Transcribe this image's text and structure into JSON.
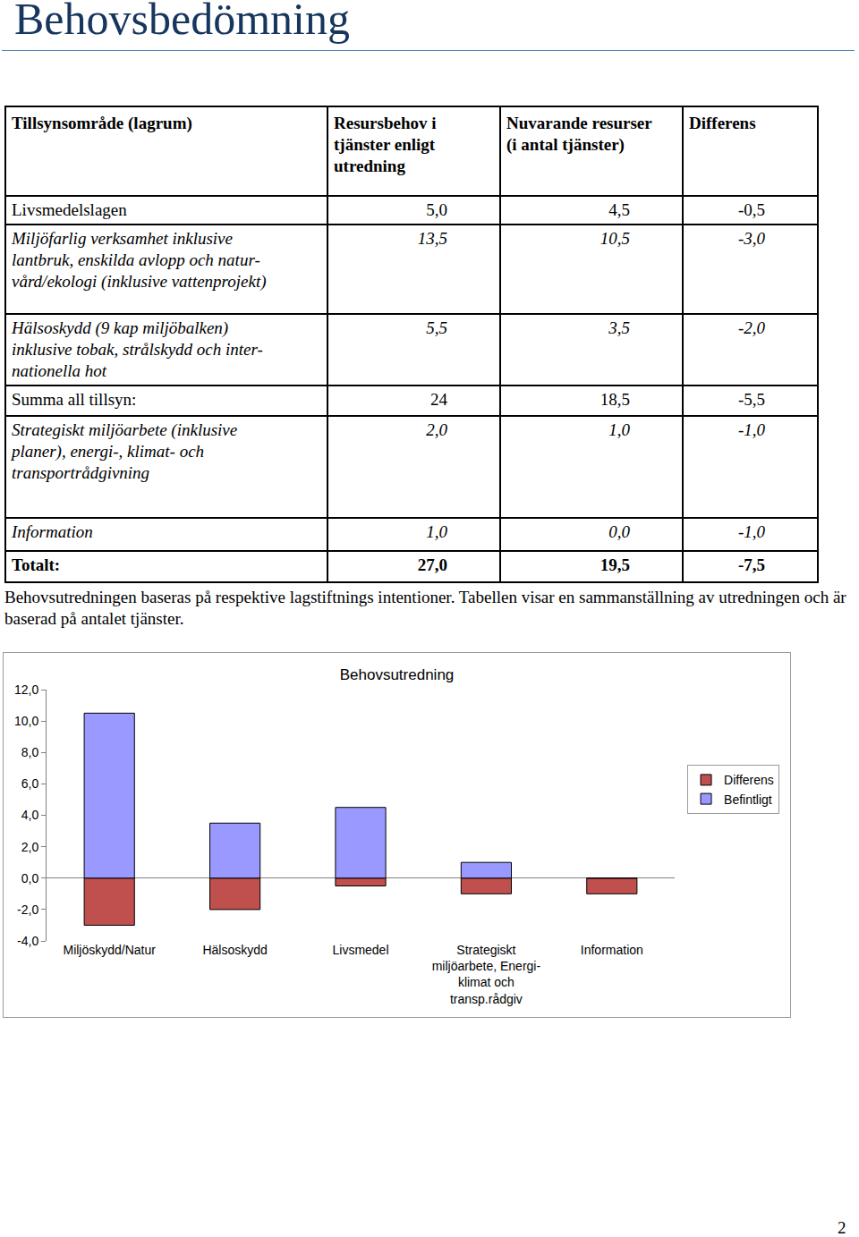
{
  "header": {
    "title": "Behovsbedömning"
  },
  "table": {
    "header": [
      "Tillsynsområde (lagrum)",
      "Resursbehov i\ntjänster enligt\nutredning",
      "Nuvarande resurser\n(i antal tjänster)",
      "Differens"
    ],
    "rows": [
      [
        "Livsmedelslagen",
        "5,0",
        "4,5",
        "-0,5"
      ],
      [
        "Miljöfarlig verksamhet inklusive\nlantbruk, enskilda avlopp och natur-\nvård/ekologi (inklusive vattenprojekt)",
        "13,5",
        "10,5",
        "-3,0"
      ],
      [
        "Hälsoskydd (9 kap miljöbalken)\ninklusive tobak, strålskydd och inter-\nnationella hot",
        "5,5",
        "3,5",
        "-2,0"
      ],
      [
        "Summa all tillsyn:",
        "24",
        "18,5",
        "-5,5"
      ],
      [
        "Strategiskt miljöarbete (inklusive\nplaner), energi-, klimat- och\ntransportrådgivning",
        "2,0",
        "1,0",
        "-1,0"
      ],
      [
        "Information",
        "1,0",
        "0,0",
        "-1,0"
      ],
      [
        "Totalt:",
        "27,0",
        "19,5",
        "-7,5"
      ]
    ]
  },
  "paragraph": "Behovsutredningen baseras på respektive lagstiftnings intentioner. Tabellen visar en sammanställning av utredningen och är baserad på antalet tjänster.",
  "chart_data": {
    "type": "bar",
    "title": "Behovsutredning",
    "stacked": true,
    "categories": [
      "Miljöskydd/Natur",
      "Hälsoskydd",
      "Livsmedel",
      "Strategiskt\nmiljöarbete, Energi-\nklimat och\ntransp.rådgiv",
      "Information"
    ],
    "series": [
      {
        "name": "Differens",
        "color": "#c0504d",
        "values": [
          -3.0,
          -2.0,
          -0.5,
          -1.0,
          -1.0
        ]
      },
      {
        "name": "Befintligt",
        "color": "#9999ff",
        "values": [
          10.5,
          3.5,
          4.5,
          1.0,
          0.0
        ]
      }
    ],
    "ylim": [
      -4,
      12
    ],
    "yticks": [
      {
        "value": -4,
        "label": "-4,0"
      },
      {
        "value": -2,
        "label": "-2,0"
      },
      {
        "value": 0,
        "label": "0,0"
      },
      {
        "value": 2,
        "label": "2,0"
      },
      {
        "value": 4,
        "label": "4,0"
      },
      {
        "value": 6,
        "label": "6,0"
      },
      {
        "value": 8,
        "label": "8,0"
      },
      {
        "value": 10,
        "label": "10,0"
      },
      {
        "value": 12,
        "label": "12,0"
      }
    ],
    "grid": false,
    "legend": "right"
  },
  "page_number": "2"
}
